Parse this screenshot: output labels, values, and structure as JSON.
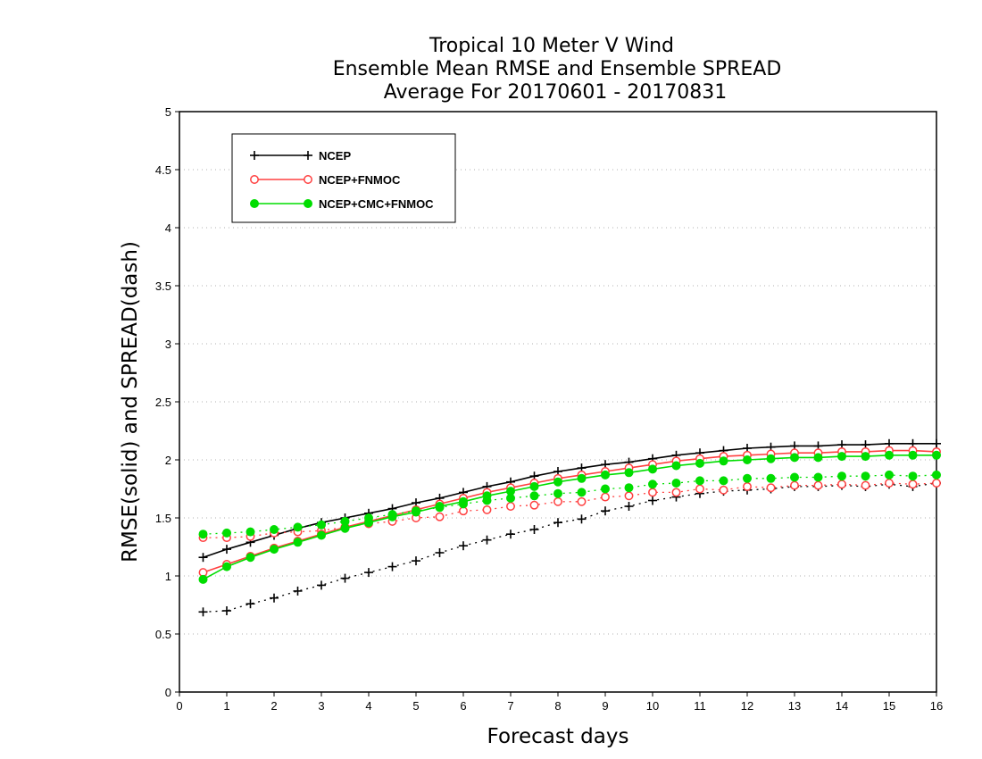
{
  "chart_data": {
    "type": "line",
    "title": [
      "Tropical 10 Meter V Wind",
      "Ensemble Mean RMSE and Ensemble SPREAD",
      "Average For 20170601 - 20170831"
    ],
    "xlabel": "Forecast days",
    "ylabel": "RMSE(solid) and SPREAD(dash)",
    "xlim": [
      0,
      16
    ],
    "ylim": [
      0,
      5
    ],
    "xticks": [
      "0",
      "1",
      "2",
      "3",
      "4",
      "5",
      "6",
      "7",
      "8",
      "9",
      "10",
      "11",
      "12",
      "13",
      "14",
      "15",
      "16"
    ],
    "yticks": [
      "0",
      "0.5",
      "1",
      "1.5",
      "2",
      "2.5",
      "3",
      "3.5",
      "4",
      "4.5",
      "5"
    ],
    "grid": true,
    "legend_position": "top-left",
    "x": [
      0.5,
      1,
      1.5,
      2,
      2.5,
      3,
      3.5,
      4,
      4.5,
      5,
      5.5,
      6,
      6.5,
      7,
      7.5,
      8,
      8.5,
      9,
      9.5,
      10,
      10.5,
      11,
      11.5,
      12,
      12.5,
      13,
      13.5,
      14,
      14.5,
      15,
      15.5,
      16
    ],
    "series": [
      {
        "name": "NCEP",
        "color": "#000000",
        "marker": "plus",
        "rmse": [
          1.16,
          1.23,
          1.29,
          1.35,
          1.41,
          1.46,
          1.5,
          1.54,
          1.58,
          1.63,
          1.67,
          1.72,
          1.77,
          1.81,
          1.86,
          1.9,
          1.93,
          1.96,
          1.98,
          2.01,
          2.04,
          2.06,
          2.08,
          2.1,
          2.11,
          2.12,
          2.12,
          2.13,
          2.13,
          2.14,
          2.14,
          2.14
        ],
        "spread": [
          0.69,
          0.7,
          0.76,
          0.81,
          0.87,
          0.92,
          0.98,
          1.03,
          1.08,
          1.13,
          1.2,
          1.26,
          1.31,
          1.36,
          1.4,
          1.46,
          1.49,
          1.56,
          1.6,
          1.65,
          1.68,
          1.71,
          1.73,
          1.74,
          1.75,
          1.77,
          1.77,
          1.78,
          1.77,
          1.79,
          1.77,
          1.8
        ]
      },
      {
        "name": "NCEP+FNMOC",
        "color": "#ff4040",
        "marker": "open-circle",
        "rmse": [
          1.03,
          1.1,
          1.17,
          1.24,
          1.3,
          1.36,
          1.42,
          1.47,
          1.52,
          1.57,
          1.62,
          1.67,
          1.72,
          1.76,
          1.8,
          1.84,
          1.87,
          1.9,
          1.93,
          1.96,
          1.99,
          2.01,
          2.03,
          2.04,
          2.05,
          2.06,
          2.06,
          2.07,
          2.07,
          2.08,
          2.08,
          2.07
        ],
        "spread": [
          1.33,
          1.33,
          1.34,
          1.37,
          1.38,
          1.39,
          1.42,
          1.45,
          1.47,
          1.5,
          1.51,
          1.56,
          1.57,
          1.6,
          1.61,
          1.64,
          1.64,
          1.68,
          1.69,
          1.72,
          1.72,
          1.75,
          1.74,
          1.77,
          1.76,
          1.78,
          1.78,
          1.79,
          1.78,
          1.8,
          1.79,
          1.8
        ]
      },
      {
        "name": "NCEP+CMC+FNMOC",
        "color": "#00dd00",
        "marker": "filled-circle",
        "rmse": [
          0.97,
          1.08,
          1.16,
          1.23,
          1.29,
          1.35,
          1.41,
          1.46,
          1.51,
          1.55,
          1.6,
          1.64,
          1.69,
          1.73,
          1.77,
          1.81,
          1.84,
          1.87,
          1.89,
          1.92,
          1.95,
          1.97,
          1.99,
          2.0,
          2.01,
          2.02,
          2.02,
          2.03,
          2.03,
          2.04,
          2.04,
          2.04
        ],
        "spread": [
          1.36,
          1.37,
          1.38,
          1.4,
          1.42,
          1.44,
          1.47,
          1.5,
          1.53,
          1.56,
          1.59,
          1.62,
          1.65,
          1.67,
          1.69,
          1.71,
          1.72,
          1.75,
          1.76,
          1.79,
          1.8,
          1.82,
          1.82,
          1.84,
          1.84,
          1.85,
          1.85,
          1.86,
          1.86,
          1.87,
          1.86,
          1.87
        ]
      }
    ]
  }
}
